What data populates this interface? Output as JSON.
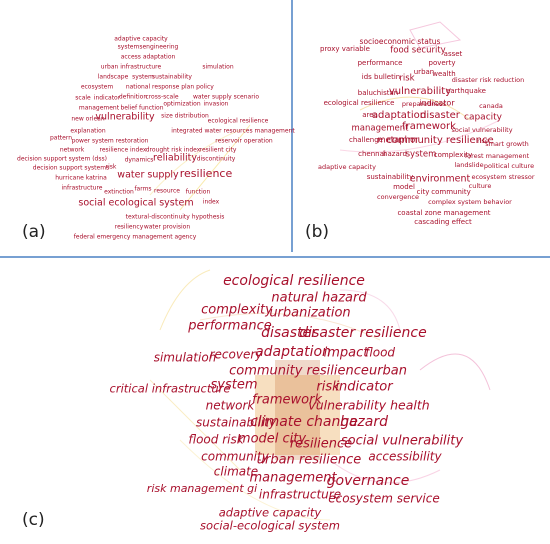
{
  "panels": [
    {
      "label": "(a)",
      "terms": [
        "adaptive capacity",
        "systemsengineering",
        "access adaptation",
        "urban infrastructure",
        "simulation",
        "landscape",
        "system",
        "sustainability",
        "ecosystem",
        "national response plan",
        "policy",
        "scale",
        "indicator",
        "definition",
        "cross-scale",
        "water supply scenario",
        "management",
        "belief function",
        "optimization",
        "invasion",
        "vulnerability",
        "size distribution",
        "new orlean",
        "explanation",
        "ecological resilience",
        "pattern",
        "power system restoration",
        "integrated water resources management",
        "network",
        "resilience index",
        "drought risk index",
        "reservoir operation",
        "decision support system (dss)",
        "dynamics",
        "reliability",
        "resilient city",
        "decision support systems",
        "risk",
        "water supply",
        "discontinuity",
        "hurricane katrina",
        "resilience",
        "infrastructure",
        "extinction",
        "farms",
        "resource",
        "function",
        "social ecological system",
        "index",
        "textural-discontinuity hypothesis",
        "resiliency",
        "water provision",
        "federal emergency management agency"
      ]
    },
    {
      "label": "(b)",
      "terms": [
        "socioeconomic status",
        "proxy variable",
        "food security",
        "asset",
        "performance",
        "poverty",
        "urban",
        "wealth",
        "ids bulletin",
        "risk",
        "disaster risk reduction",
        "earthquake",
        "baluchistan",
        "vulnerability",
        "preparedness",
        "indicator",
        "canada",
        "ecological resilience",
        "area",
        "adaptation",
        "disaster",
        "capacity",
        "management",
        "framework",
        "social vulnerability",
        "challenge",
        "metaphor",
        "community resilience",
        "rise",
        "smart growth",
        "chennai",
        "hazard",
        "system",
        "complexity",
        "forest management",
        "adaptive capacity",
        "landslide",
        "political culture",
        "sustainability",
        "environment",
        "ecosystem stressor",
        "model",
        "city",
        "community",
        "culture",
        "convergence",
        "complex system behavior",
        "coastal zone management",
        "cascading effect"
      ]
    },
    {
      "label": "(c)",
      "terms": [
        "ecological resilience",
        "natural hazard",
        "complexity",
        "urbanization",
        "performance",
        "disaster",
        "disaster resilience",
        "simulation",
        "recovery",
        "adaptation",
        "impact",
        "flood",
        "community resilience",
        "urban",
        "critical infrastructure",
        "system",
        "risk",
        "indicator",
        "network",
        "framework",
        "vulnerability health",
        "sustainability",
        "climate change",
        "hazard",
        "flood risk",
        "model city",
        "resilience",
        "social vulnerability",
        "community",
        "urban resilience",
        "accessibility",
        "climate",
        "management",
        "governance",
        "risk management gi",
        "infrastructure",
        "ecosystem service",
        "adaptive capacity",
        "social-ecological system"
      ]
    }
  ]
}
